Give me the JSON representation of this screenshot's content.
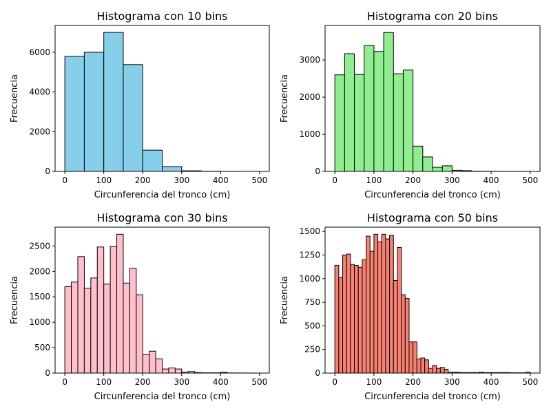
{
  "chart_data": [
    {
      "type": "bar",
      "title": "Histograma con 10 bins",
      "xlabel": "Circunferencia del tronco (cm)",
      "ylabel": "Frecuencia",
      "color": "#87ceeb",
      "xlim": [
        -25,
        525
      ],
      "ylim": [
        0,
        7350
      ],
      "xticks": [
        0,
        100,
        200,
        300,
        400,
        500
      ],
      "yticks": [
        0,
        2000,
        4000,
        6000
      ],
      "bin_range": [
        0,
        500
      ],
      "bins": 10,
      "values": [
        5800,
        6000,
        7000,
        5380,
        1070,
        240,
        30,
        6,
        2,
        1
      ]
    },
    {
      "type": "bar",
      "title": "Histograma con 20 bins",
      "xlabel": "Circunferencia del tronco (cm)",
      "ylabel": "Frecuencia",
      "color": "#90ee90",
      "xlim": [
        -25,
        525
      ],
      "ylim": [
        0,
        3930
      ],
      "xticks": [
        0,
        100,
        200,
        300,
        400,
        500
      ],
      "yticks": [
        0,
        1000,
        2000,
        3000
      ],
      "bin_range": [
        0,
        500
      ],
      "bins": 20,
      "values": [
        2600,
        3170,
        2610,
        3390,
        3230,
        3740,
        2630,
        2730,
        680,
        390,
        110,
        150,
        30,
        20,
        5,
        4,
        2,
        1,
        1,
        1
      ]
    },
    {
      "type": "bar",
      "title": "Histograma con 30 bins",
      "xlabel": "Circunferencia del tronco (cm)",
      "ylabel": "Frecuencia",
      "color": "#ffc0cb",
      "xlim": [
        -25,
        525
      ],
      "ylim": [
        0,
        2870
      ],
      "xticks": [
        0,
        100,
        200,
        300,
        400,
        500
      ],
      "yticks": [
        0,
        500,
        1000,
        1500,
        2000,
        2500
      ],
      "bin_range": [
        0,
        500
      ],
      "bins": 30,
      "values": [
        1700,
        1790,
        2290,
        1670,
        1870,
        2480,
        1750,
        2490,
        2730,
        1770,
        2060,
        1540,
        370,
        430,
        280,
        80,
        100,
        80,
        20,
        30,
        10,
        5,
        5,
        5,
        15,
        3,
        2,
        2,
        1,
        1
      ]
    },
    {
      "type": "bar",
      "title": "Histograma con 50 bins",
      "xlabel": "Circunferencia del tronco (cm)",
      "ylabel": "Frecuencia",
      "color": "#fa8072",
      "xlim": [
        -25,
        525
      ],
      "ylim": [
        0,
        1545
      ],
      "xticks": [
        0,
        100,
        200,
        300,
        400,
        500
      ],
      "yticks": [
        0,
        250,
        500,
        750,
        1000,
        1250,
        1500
      ],
      "bin_range": [
        0,
        500
      ],
      "bins": 50,
      "values": [
        1140,
        1010,
        1250,
        1260,
        1150,
        1140,
        1120,
        1200,
        1450,
        1290,
        1470,
        1390,
        1470,
        1420,
        1460,
        980,
        1330,
        830,
        790,
        330,
        330,
        150,
        160,
        140,
        50,
        80,
        50,
        60,
        40,
        10,
        10,
        10,
        5,
        5,
        5,
        5,
        5,
        10,
        5,
        5,
        5,
        5,
        5,
        5,
        5,
        3,
        3,
        3,
        3,
        10
      ]
    }
  ]
}
